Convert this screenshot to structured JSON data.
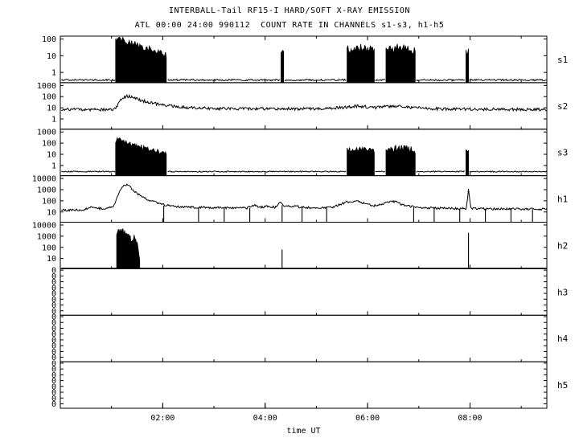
{
  "title": "INTERBALL-Tail RF15-I HARD/SOFT X-RAY EMISSION",
  "subtitle": "ATL 00:00 24:00 990112  COUNT RATE IN CHANNELS s1-s3, h1-h5",
  "colors": {
    "foreground": "#000000",
    "background": "#ffffff"
  },
  "chart_data": {
    "type": "line",
    "title": "INTERBALL-Tail RF15-I HARD/SOFT X-RAY EMISSION",
    "subtitle": "ATL 00:00 24:00 990112  COUNT RATE IN CHANNELS s1-s3, h1-h5",
    "xlabel": "time UT",
    "x_range_hours": [
      0,
      9.5
    ],
    "x_ticks": [
      {
        "t": 2,
        "label": "02:00"
      },
      {
        "t": 4,
        "label": "04:00"
      },
      {
        "t": 6,
        "label": "06:00"
      },
      {
        "t": 8,
        "label": "08:00"
      }
    ],
    "x_minor_step_hours": 1,
    "grid": false,
    "scale": "log",
    "panels": [
      {
        "name": "s1",
        "yticks": [
          {
            "label": "100",
            "f": 0.06
          },
          {
            "label": "10",
            "f": 0.42
          },
          {
            "label": "1",
            "f": 0.78
          }
        ],
        "log_top": 2.17,
        "log_bottom": -0.61,
        "elements": [
          {
            "type": "line",
            "noise": 0.05,
            "pts": [
              [
                0.02,
                -0.45
              ],
              [
                1.07,
                -0.45
              ]
            ]
          },
          {
            "type": "burst",
            "noise": 0.2,
            "pts": [
              [
                1.08,
                1.9
              ],
              [
                1.13,
                2.05
              ],
              [
                1.22,
                1.92
              ],
              [
                1.38,
                1.75
              ],
              [
                1.58,
                1.55
              ],
              [
                1.8,
                1.32
              ],
              [
                2.0,
                1.12
              ],
              [
                2.07,
                1.0
              ]
            ]
          },
          {
            "type": "line",
            "noise": 0.05,
            "pts": [
              [
                2.1,
                -0.45
              ],
              [
                4.29,
                -0.45
              ]
            ]
          },
          {
            "type": "burst",
            "noise": 0.2,
            "pts": [
              [
                4.31,
                1.35
              ],
              [
                4.36,
                1.35
              ]
            ]
          },
          {
            "type": "line",
            "noise": 0.05,
            "pts": [
              [
                4.38,
                -0.45
              ],
              [
                5.58,
                -0.45
              ]
            ]
          },
          {
            "type": "burst",
            "noise": 0.25,
            "pts": [
              [
                5.6,
                1.35
              ],
              [
                5.75,
                1.48
              ],
              [
                5.95,
                1.42
              ],
              [
                6.1,
                1.45
              ],
              [
                6.13,
                1.3
              ]
            ]
          },
          {
            "type": "line",
            "noise": 0.05,
            "pts": [
              [
                6.15,
                -0.45
              ],
              [
                6.34,
                -0.45
              ]
            ]
          },
          {
            "type": "burst",
            "noise": 0.25,
            "pts": [
              [
                6.36,
                1.38
              ],
              [
                6.55,
                1.5
              ],
              [
                6.75,
                1.45
              ],
              [
                6.93,
                1.32
              ]
            ]
          },
          {
            "type": "line",
            "noise": 0.05,
            "pts": [
              [
                6.95,
                -0.45
              ],
              [
                7.9,
                -0.45
              ]
            ]
          },
          {
            "type": "burst",
            "noise": 0.2,
            "pts": [
              [
                7.92,
                1.25
              ],
              [
                7.97,
                1.25
              ]
            ]
          },
          {
            "type": "line",
            "noise": 0.05,
            "pts": [
              [
                7.99,
                -0.45
              ],
              [
                9.5,
                -0.45
              ]
            ]
          }
        ]
      },
      {
        "name": "s2",
        "yticks": [
          {
            "label": "1000",
            "f": 0.06
          },
          {
            "label": "100",
            "f": 0.3
          },
          {
            "label": "10",
            "f": 0.54
          },
          {
            "label": "1",
            "f": 0.78
          }
        ],
        "log_top": 3.25,
        "log_bottom": -0.92,
        "elements": [
          {
            "type": "line",
            "noise": 0.13,
            "pts": [
              [
                0.02,
                0.85
              ],
              [
                1.0,
                0.82
              ],
              [
                1.08,
                0.95
              ],
              [
                1.18,
                1.7
              ],
              [
                1.3,
                2.05
              ],
              [
                1.4,
                1.95
              ],
              [
                1.55,
                1.7
              ],
              [
                1.75,
                1.45
              ],
              [
                2.0,
                1.25
              ],
              [
                2.3,
                1.08
              ],
              [
                2.7,
                0.98
              ],
              [
                3.2,
                0.92
              ],
              [
                3.7,
                0.9
              ],
              [
                4.2,
                0.92
              ],
              [
                4.7,
                0.9
              ],
              [
                5.2,
                0.92
              ],
              [
                5.5,
                1.02
              ],
              [
                5.75,
                1.15
              ],
              [
                5.95,
                1.1
              ],
              [
                6.15,
                1.0
              ],
              [
                6.35,
                1.1
              ],
              [
                6.65,
                1.1
              ],
              [
                6.9,
                1.0
              ],
              [
                7.2,
                0.92
              ],
              [
                7.8,
                0.88
              ],
              [
                9.5,
                0.85
              ]
            ]
          }
        ]
      },
      {
        "name": "s3",
        "yticks": [
          {
            "label": "1000",
            "f": 0.06
          },
          {
            "label": "100",
            "f": 0.3
          },
          {
            "label": "10",
            "f": 0.54
          },
          {
            "label": "1",
            "f": 0.78
          }
        ],
        "log_top": 3.25,
        "log_bottom": -0.92,
        "elements": [
          {
            "type": "line",
            "noise": 0.05,
            "pts": [
              [
                0.02,
                -0.55
              ],
              [
                1.07,
                -0.55
              ]
            ]
          },
          {
            "type": "burst",
            "noise": 0.2,
            "pts": [
              [
                1.08,
                2.2
              ],
              [
                1.14,
                2.35
              ],
              [
                1.28,
                2.08
              ],
              [
                1.48,
                1.8
              ],
              [
                1.7,
                1.5
              ],
              [
                1.95,
                1.18
              ],
              [
                2.07,
                1.0
              ]
            ]
          },
          {
            "type": "line",
            "noise": 0.05,
            "pts": [
              [
                2.1,
                -0.55
              ],
              [
                5.58,
                -0.55
              ]
            ]
          },
          {
            "type": "burst",
            "noise": 0.3,
            "pts": [
              [
                5.6,
                1.42
              ],
              [
                5.8,
                1.55
              ],
              [
                6.0,
                1.48
              ],
              [
                6.13,
                1.38
              ]
            ]
          },
          {
            "type": "line",
            "noise": 0.05,
            "pts": [
              [
                6.15,
                -0.55
              ],
              [
                6.34,
                -0.55
              ]
            ]
          },
          {
            "type": "burst",
            "noise": 0.3,
            "pts": [
              [
                6.36,
                1.48
              ],
              [
                6.6,
                1.55
              ],
              [
                6.85,
                1.45
              ],
              [
                6.93,
                1.35
              ]
            ]
          },
          {
            "type": "line",
            "noise": 0.05,
            "pts": [
              [
                6.95,
                -0.55
              ],
              [
                7.9,
                -0.55
              ]
            ]
          },
          {
            "type": "burst",
            "noise": 0.25,
            "pts": [
              [
                7.92,
                1.32
              ],
              [
                7.97,
                1.32
              ]
            ]
          },
          {
            "type": "line",
            "noise": 0.05,
            "pts": [
              [
                7.99,
                -0.55
              ],
              [
                9.5,
                -0.55
              ]
            ]
          }
        ]
      },
      {
        "name": "h1",
        "yticks": [
          {
            "label": "10000",
            "f": 0.06
          },
          {
            "label": "1000",
            "f": 0.3
          },
          {
            "label": "100",
            "f": 0.54
          },
          {
            "label": "10",
            "f": 0.78
          }
        ],
        "log_top": 4.25,
        "log_bottom": 0.08,
        "elements": [
          {
            "type": "line",
            "noise": 0.1,
            "pts": [
              [
                0.02,
                1.15
              ],
              [
                0.45,
                1.18
              ],
              [
                0.6,
                1.42
              ],
              [
                0.75,
                1.3
              ],
              [
                0.95,
                1.35
              ],
              [
                1.05,
                1.6
              ],
              [
                1.15,
                2.8
              ],
              [
                1.25,
                3.4
              ],
              [
                1.32,
                3.45
              ],
              [
                1.45,
                2.85
              ],
              [
                1.6,
                2.35
              ],
              [
                1.8,
                1.95
              ],
              [
                2.05,
                1.6
              ],
              [
                2.35,
                1.45
              ],
              [
                2.8,
                1.4
              ],
              [
                3.3,
                1.38
              ],
              [
                3.65,
                1.35
              ],
              [
                3.78,
                1.62
              ],
              [
                3.88,
                1.4
              ],
              [
                4.05,
                1.5
              ],
              [
                4.2,
                1.42
              ],
              [
                4.3,
                1.9
              ],
              [
                4.38,
                1.45
              ],
              [
                4.55,
                1.55
              ],
              [
                4.75,
                1.4
              ],
              [
                5.05,
                1.35
              ],
              [
                5.35,
                1.45
              ],
              [
                5.6,
                1.9
              ],
              [
                5.75,
                2.0
              ],
              [
                5.9,
                1.85
              ],
              [
                6.05,
                1.6
              ],
              [
                6.2,
                1.55
              ],
              [
                6.35,
                1.85
              ],
              [
                6.55,
                1.95
              ],
              [
                6.7,
                1.6
              ],
              [
                6.95,
                1.42
              ],
              [
                7.3,
                1.35
              ],
              [
                7.7,
                1.3
              ],
              [
                7.93,
                1.3
              ],
              [
                7.97,
                3.0
              ],
              [
                8.02,
                1.3
              ],
              [
                8.5,
                1.28
              ],
              [
                9.5,
                1.25
              ]
            ]
          },
          {
            "type": "vline",
            "t": 2.02,
            "v": 1.55
          },
          {
            "type": "vline",
            "t": 2.7,
            "v": 1.4
          },
          {
            "type": "vline",
            "t": 3.2,
            "v": 1.38
          },
          {
            "type": "vline",
            "t": 3.7,
            "v": 1.35
          },
          {
            "type": "vline",
            "t": 4.33,
            "v": 1.6
          },
          {
            "type": "vline",
            "t": 4.72,
            "v": 1.4
          },
          {
            "type": "vline",
            "t": 5.2,
            "v": 1.38
          },
          {
            "type": "vline",
            "t": 6.9,
            "v": 1.42
          },
          {
            "type": "vline",
            "t": 7.3,
            "v": 1.35
          },
          {
            "type": "vline",
            "t": 7.8,
            "v": 1.3
          },
          {
            "type": "vline",
            "t": 8.3,
            "v": 1.28
          },
          {
            "type": "vline",
            "t": 8.8,
            "v": 1.27
          },
          {
            "type": "vline",
            "t": 9.22,
            "v": 1.25
          }
        ]
      },
      {
        "name": "h2",
        "yticks": [
          {
            "label": "10000",
            "f": 0.06
          },
          {
            "label": "1000",
            "f": 0.3
          },
          {
            "label": "100",
            "f": 0.54
          },
          {
            "label": "10",
            "f": 0.78
          }
        ],
        "log_top": 4.25,
        "log_bottom": 0.08,
        "elements": [
          {
            "type": "line",
            "noise": 0.0,
            "pts": [
              [
                0.02,
                0.12
              ],
              [
                9.5,
                0.12
              ]
            ]
          },
          {
            "type": "burst",
            "noise": 0.3,
            "pts": [
              [
                1.1,
                3.2
              ],
              [
                1.18,
                3.45
              ],
              [
                1.27,
                3.25
              ],
              [
                1.33,
                3.35
              ],
              [
                1.38,
                2.6
              ],
              [
                1.44,
                3.0
              ],
              [
                1.5,
                2.5
              ],
              [
                1.55,
                1.2
              ]
            ]
          },
          {
            "type": "vline",
            "t": 4.33,
            "v": 1.8
          },
          {
            "type": "vline",
            "t": 7.97,
            "v": 3.3
          }
        ]
      },
      {
        "name": "h3",
        "yticks": [
          {
            "label": "0",
            "f": 0.03
          },
          {
            "label": "0",
            "f": 0.155
          },
          {
            "label": "0",
            "f": 0.28
          },
          {
            "label": "0",
            "f": 0.405
          },
          {
            "label": "0",
            "f": 0.53
          },
          {
            "label": "0",
            "f": 0.655
          },
          {
            "label": "0",
            "f": 0.78
          },
          {
            "label": "0",
            "f": 0.905
          }
        ],
        "log_top": 1,
        "log_bottom": 0,
        "elements": []
      },
      {
        "name": "h4",
        "yticks": [
          {
            "label": "0",
            "f": 0.03
          },
          {
            "label": "0",
            "f": 0.155
          },
          {
            "label": "0",
            "f": 0.28
          },
          {
            "label": "0",
            "f": 0.405
          },
          {
            "label": "0",
            "f": 0.53
          },
          {
            "label": "0",
            "f": 0.655
          },
          {
            "label": "0",
            "f": 0.78
          },
          {
            "label": "0",
            "f": 0.905
          }
        ],
        "log_top": 1,
        "log_bottom": 0,
        "elements": []
      },
      {
        "name": "h5",
        "yticks": [
          {
            "label": "0",
            "f": 0.03
          },
          {
            "label": "0",
            "f": 0.155
          },
          {
            "label": "0",
            "f": 0.28
          },
          {
            "label": "0",
            "f": 0.405
          },
          {
            "label": "0",
            "f": 0.53
          },
          {
            "label": "0",
            "f": 0.655
          },
          {
            "label": "0",
            "f": 0.78
          },
          {
            "label": "0",
            "f": 0.905
          }
        ],
        "log_top": 1,
        "log_bottom": 0,
        "elements": []
      }
    ]
  }
}
